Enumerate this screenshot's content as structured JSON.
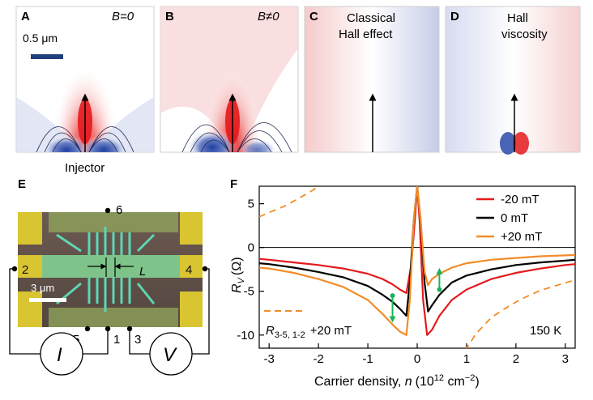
{
  "panels": {
    "A": {
      "letter": "A",
      "field": "B=0",
      "scale_label": "0.5 μm",
      "injector_label": "Injector"
    },
    "B": {
      "letter": "B",
      "field": "B≠0"
    },
    "C": {
      "letter": "C",
      "title_line1": "Classical",
      "title_line2": "Hall effect"
    },
    "D": {
      "letter": "D",
      "title_line1": "Hall",
      "title_line2": "viscosity"
    },
    "E": {
      "letter": "E",
      "contacts": [
        "6",
        "2",
        "4",
        "5",
        "1",
        "3"
      ],
      "length_label": "L",
      "scale_label": "3 μm",
      "current_symbol": "I",
      "voltage_symbol": "V"
    },
    "F": {
      "letter": "F",
      "annotation_main": "R",
      "annotation_sub": "3-5, 1-2",
      "annotation_field": "+20 mT",
      "temperature": "150 K"
    }
  },
  "colors": {
    "red": "#e41a1c",
    "black": "#000000",
    "orange": "#f28c28",
    "green": "#19b35a",
    "scalebar": "#1f3f7a"
  },
  "chart_data": {
    "type": "line",
    "title": "",
    "xlabel_main": "Carrier density, ",
    "xlabel_var": "n",
    "xlabel_units": "(10",
    "xlabel_exp": "12",
    "xlabel_tail": " cm",
    "xlabel_exp2": "−2",
    "xlabel_close": ")",
    "ylabel_main": "R",
    "ylabel_sub": "V",
    "ylabel_units": "(Ω)",
    "xlim": [
      -3.2,
      3.2
    ],
    "ylim": [
      -11.5,
      7
    ],
    "xticks": [
      "-3",
      "-2",
      "-1",
      "0",
      "1",
      "2",
      "3"
    ],
    "yticks": [
      "5",
      "0",
      "-5",
      "-10"
    ],
    "legend": [
      "-20 mT",
      "0 mT",
      "+20 mT"
    ],
    "legend_position": "top-right",
    "series": [
      {
        "name": "-20 mT",
        "color": "#e41a1c",
        "x": [
          -3.2,
          -3,
          -2.5,
          -2,
          -1.5,
          -1,
          -0.7,
          -0.5,
          -0.35,
          -0.22,
          -0.12,
          -0.05,
          0,
          0.05,
          0.12,
          0.2,
          0.3,
          0.45,
          0.7,
          1,
          1.5,
          2,
          2.5,
          3,
          3.2
        ],
        "y": [
          -1.3,
          -1.4,
          -1.7,
          -2.0,
          -2.4,
          -3.0,
          -3.6,
          -4.2,
          -4.8,
          -5.2,
          -2.0,
          3.0,
          7.0,
          3.0,
          -6.0,
          -10.0,
          -9.4,
          -7.8,
          -6.0,
          -4.8,
          -3.6,
          -2.9,
          -2.4,
          -2.0,
          -1.9
        ]
      },
      {
        "name": "0 mT",
        "color": "#000000",
        "x": [
          -3.2,
          -3,
          -2.5,
          -2,
          -1.5,
          -1,
          -0.7,
          -0.5,
          -0.35,
          -0.22,
          -0.15,
          -0.07,
          0,
          0.07,
          0.15,
          0.22,
          0.3,
          0.45,
          0.7,
          1,
          1.5,
          2,
          2.5,
          3,
          3.2
        ],
        "y": [
          -1.8,
          -1.9,
          -2.3,
          -2.8,
          -3.4,
          -4.4,
          -5.4,
          -6.2,
          -7.0,
          -7.8,
          -4.0,
          3.0,
          7.0,
          3.0,
          -4.0,
          -7.3,
          -6.6,
          -5.4,
          -4.0,
          -3.2,
          -2.5,
          -2.0,
          -1.7,
          -1.5,
          -1.4
        ]
      },
      {
        "name": "+20 mT",
        "color": "#f28c28",
        "x": [
          -3.2,
          -3,
          -2.5,
          -2,
          -1.5,
          -1,
          -0.7,
          -0.5,
          -0.35,
          -0.22,
          -0.15,
          -0.07,
          0,
          0.07,
          0.15,
          0.22,
          0.3,
          0.45,
          0.7,
          1,
          1.5,
          2,
          2.5,
          3,
          3.2
        ],
        "y": [
          -2.3,
          -2.4,
          -2.9,
          -3.6,
          -4.5,
          -6.0,
          -7.6,
          -8.8,
          -9.6,
          -10.0,
          -6.0,
          3.0,
          7.0,
          3.0,
          -2.8,
          -4.3,
          -3.6,
          -3.0,
          -2.3,
          -1.8,
          -1.4,
          -1.2,
          -1.0,
          -0.9,
          -0.85
        ]
      },
      {
        "name": "",
        "color": "#f28c28",
        "dashed": true,
        "x": [
          -3.2,
          -3,
          -2.7,
          -2.4,
          -2.1,
          -1.8,
          -1.6
        ],
        "y": [
          3.5,
          4.0,
          4.7,
          5.6,
          6.6,
          7.8,
          9.0
        ]
      },
      {
        "name": "",
        "color": "#f28c28",
        "dashed": true,
        "x": [
          0.9,
          1.0,
          1.2,
          1.5,
          1.8,
          2.1,
          2.5,
          2.9,
          3.2
        ],
        "y": [
          -13.0,
          -11.5,
          -9.8,
          -8.0,
          -6.9,
          -5.9,
          -4.9,
          -4.2,
          -3.7
        ]
      }
    ],
    "arrows": [
      {
        "x": -0.5,
        "y_from": -5.5,
        "y_to": -8.2
      },
      {
        "x": 0.45,
        "y_from": -4.8,
        "y_to": -2.7
      }
    ]
  }
}
